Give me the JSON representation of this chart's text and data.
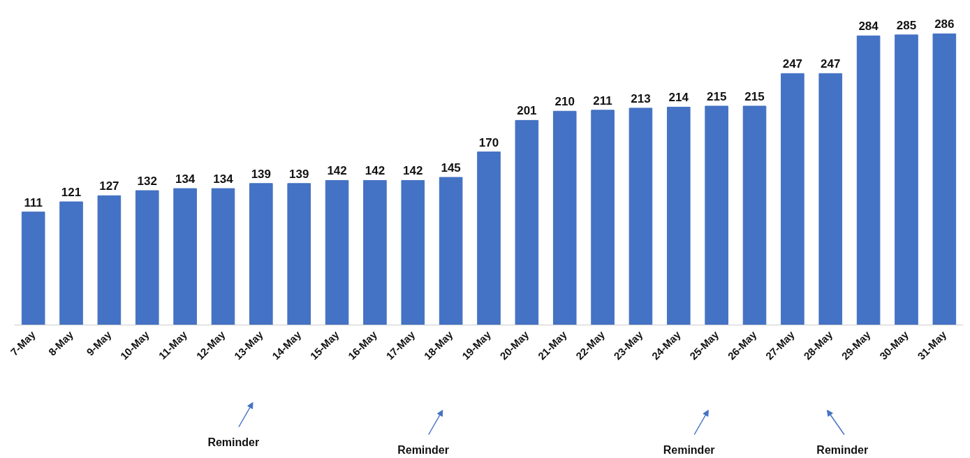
{
  "chart_data": {
    "type": "bar",
    "categories": [
      "7-May",
      "8-May",
      "9-May",
      "10-May",
      "11-May",
      "12-May",
      "13-May",
      "14-May",
      "15-May",
      "16-May",
      "17-May",
      "18-May",
      "19-May",
      "20-May",
      "21-May",
      "22-May",
      "23-May",
      "24-May",
      "25-May",
      "26-May",
      "27-May",
      "28-May",
      "29-May",
      "30-May",
      "31-May"
    ],
    "values": [
      111,
      121,
      127,
      132,
      134,
      134,
      139,
      139,
      142,
      142,
      142,
      145,
      170,
      201,
      210,
      211,
      213,
      214,
      215,
      215,
      247,
      247,
      284,
      285,
      286
    ],
    "color": "#4472c4",
    "data_labels": true,
    "grid": false,
    "legend": false,
    "tick_labels": "x",
    "annotations": [
      "Reminder",
      "Reminder",
      "Reminder",
      "Reminder"
    ]
  }
}
